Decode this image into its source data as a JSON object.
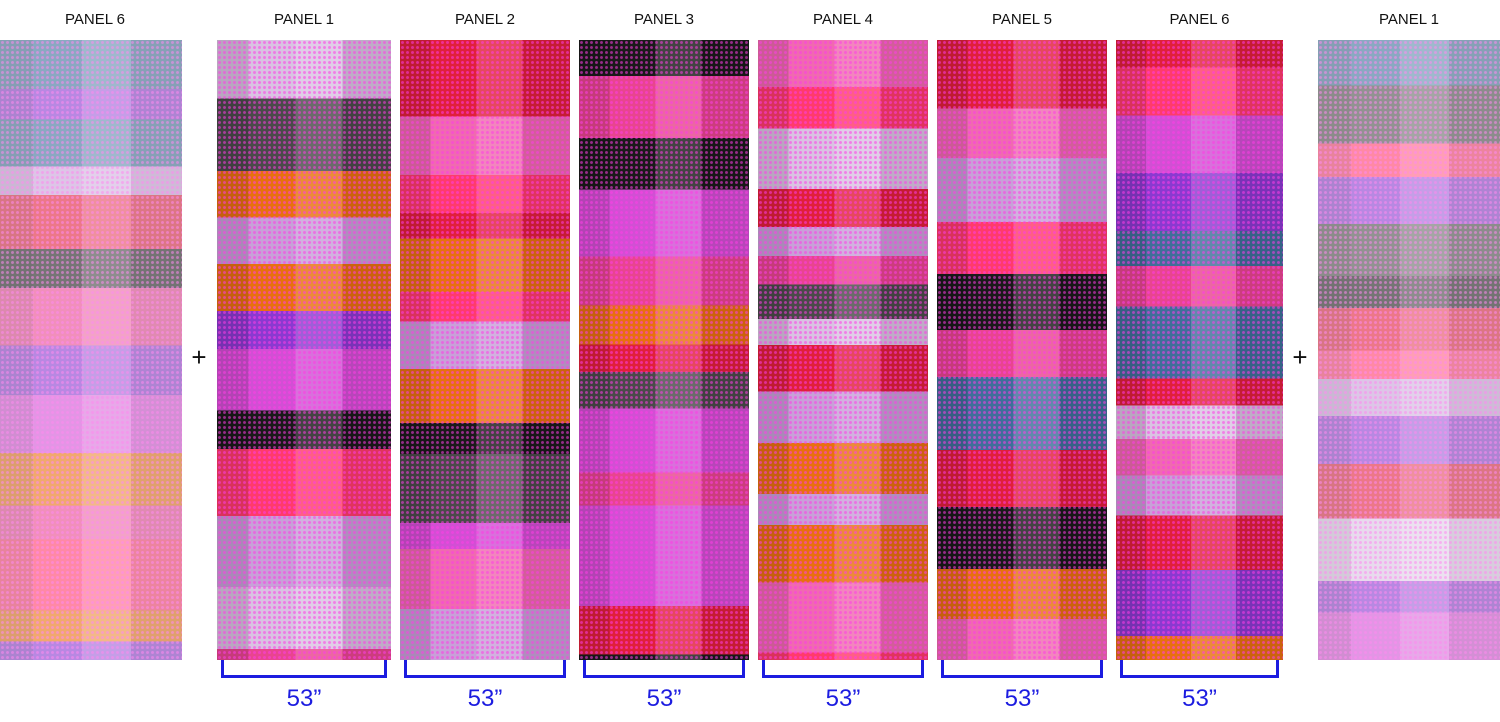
{
  "left_preview": {
    "label": "PANEL 6"
  },
  "plus_left": "+",
  "panels": [
    {
      "label": "PANEL 1",
      "width": "53”"
    },
    {
      "label": "PANEL 2",
      "width": "53”"
    },
    {
      "label": "PANEL 3",
      "width": "53”"
    },
    {
      "label": "PANEL 4",
      "width": "53”"
    },
    {
      "label": "PANEL 5",
      "width": "53”"
    },
    {
      "label": "PANEL 6",
      "width": "53”"
    }
  ],
  "plus_right": "+",
  "right_preview": {
    "label": "PANEL 1"
  }
}
